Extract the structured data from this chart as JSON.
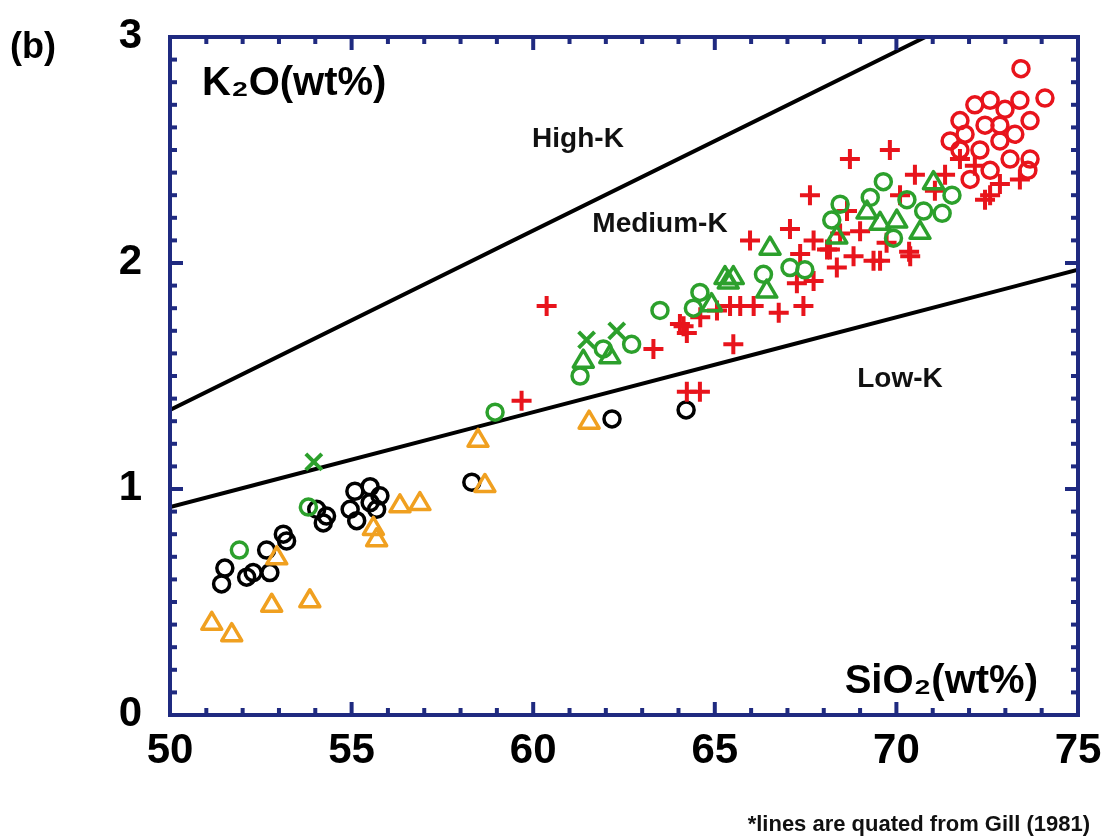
{
  "chart_data": {
    "type": "scatter",
    "title": "(b)",
    "xlabel": "SiO₂(wt%)",
    "ylabel": "K₂O(wt%)",
    "xlim": [
      50,
      75
    ],
    "ylim": [
      0,
      3
    ],
    "xticks": [
      50,
      {
        "value": 51,
        "label": null
      },
      {
        "value": 52,
        "label": null
      },
      {
        "value": 53,
        "label": null
      },
      {
        "value": 54,
        "label": null
      },
      55,
      {
        "value": 56,
        "label": null
      },
      {
        "value": 57,
        "label": null
      },
      {
        "value": 58,
        "label": null
      },
      {
        "value": 59,
        "label": null
      },
      60,
      {
        "value": 61,
        "label": null
      },
      {
        "value": 62,
        "label": null
      },
      {
        "value": 63,
        "label": null
      },
      {
        "value": 64,
        "label": null
      },
      65,
      {
        "value": 66,
        "label": null
      },
      {
        "value": 67,
        "label": null
      },
      {
        "value": 68,
        "label": null
      },
      {
        "value": 69,
        "label": null
      },
      70,
      {
        "value": 71,
        "label": null
      },
      {
        "value": 72,
        "label": null
      },
      {
        "value": 73,
        "label": null
      },
      {
        "value": 74,
        "label": null
      },
      75
    ],
    "yticks": [
      0,
      {
        "value": 0.1,
        "label": null
      },
      {
        "value": 0.2,
        "label": null
      },
      {
        "value": 0.3,
        "label": null
      },
      {
        "value": 0.4,
        "label": null
      },
      {
        "value": 0.5,
        "label": null
      },
      {
        "value": 0.6,
        "label": null
      },
      {
        "value": 0.7,
        "label": null
      },
      {
        "value": 0.8,
        "label": null
      },
      {
        "value": 0.9,
        "label": null
      },
      1,
      {
        "value": 1.1,
        "label": null
      },
      {
        "value": 1.2,
        "label": null
      },
      {
        "value": 1.3,
        "label": null
      },
      {
        "value": 1.4,
        "label": null
      },
      {
        "value": 1.5,
        "label": null
      },
      {
        "value": 1.6,
        "label": null
      },
      {
        "value": 1.7,
        "label": null
      },
      {
        "value": 1.8,
        "label": null
      },
      {
        "value": 1.9,
        "label": null
      },
      2,
      {
        "value": 2.1,
        "label": null
      },
      {
        "value": 2.2,
        "label": null
      },
      {
        "value": 2.3,
        "label": null
      },
      {
        "value": 2.4,
        "label": null
      },
      {
        "value": 2.5,
        "label": null
      },
      {
        "value": 2.6,
        "label": null
      },
      {
        "value": 2.7,
        "label": null
      },
      {
        "value": 2.8,
        "label": null
      },
      {
        "value": 2.9,
        "label": null
      },
      3
    ],
    "series": [
      {
        "type": "line",
        "marker": "none",
        "color": "#000000",
        "x": [
          50,
          70.8
        ],
        "values": [
          1.35,
          3
        ]
      },
      {
        "type": "line",
        "marker": "none",
        "color": "#000000",
        "x": [
          50,
          75
        ],
        "values": [
          0.92,
          1.97
        ]
      },
      {
        "color": "#000000",
        "marker": "circle",
        "x": [
          51.42,
          51.51,
          52.11,
          52.29,
          52.75,
          52.66,
          53.21,
          53.12,
          54.04,
          54.22,
          54.31,
          55.09,
          55.51,
          55.78,
          55.14,
          55.51,
          54.96,
          55.69,
          58.31,
          62.17,
          64.21
        ],
        "values": [
          0.58,
          0.65,
          0.61,
          0.63,
          0.63,
          0.73,
          0.77,
          0.8,
          0.91,
          0.85,
          0.88,
          0.99,
          1.01,
          0.97,
          0.86,
          0.94,
          0.91,
          0.91,
          1.03,
          1.31,
          1.35
        ]
      },
      {
        "color": "#f0a020",
        "marker": "triangle",
        "x": [
          51.15,
          51.7,
          52.8,
          53.85,
          52.94,
          55.6,
          55.69,
          56.33,
          56.88,
          58.48,
          58.67,
          61.54
        ],
        "values": [
          0.41,
          0.36,
          0.49,
          0.51,
          0.7,
          0.83,
          0.78,
          0.93,
          0.94,
          1.22,
          1.02,
          1.3
        ]
      },
      {
        "color": "#e8141c",
        "marker": "cross",
        "x": [
          60.37,
          59.68,
          63.31,
          64.23,
          64.59,
          64.04,
          64.23,
          65.51,
          65.42,
          64.14,
          64.6,
          65.06,
          65.7,
          66.07,
          66.76,
          67.44,
          67.26,
          67.72,
          68.36,
          67.35,
          67.72,
          68.09,
          68.45,
          68.64,
          68.82,
          69.37,
          70.38,
          69,
          69.73,
          67.62,
          68.72,
          70.1,
          70.51,
          69.82,
          71.06,
          72.58,
          73.4,
          72.44,
          71.75,
          65.97,
          67.07,
          68.17,
          69.55,
          70.35,
          71.34,
          72.16,
          72.85
        ],
        "values": [
          1.81,
          1.39,
          1.62,
          1.43,
          1.43,
          1.73,
          1.69,
          1.64,
          1.81,
          1.72,
          1.76,
          1.79,
          1.81,
          1.81,
          1.78,
          1.81,
          1.91,
          1.92,
          1.98,
          2.04,
          2.1,
          2.06,
          2.13,
          2.23,
          2.03,
          2.01,
          2.03,
          2.14,
          2.09,
          2.3,
          2.46,
          2.3,
          2.39,
          2.5,
          2.32,
          2.3,
          2.37,
          2.28,
          2.46,
          2.1,
          2.15,
          2.06,
          2.01,
          2.05,
          2.39,
          2.43,
          2.35
        ]
      },
      {
        "color": "#e8141c",
        "marker": "circle",
        "x": [
          71.75,
          72.16,
          72.58,
          72.99,
          73.4,
          73.43,
          74.09,
          73.68,
          72.85,
          72.3,
          71.75,
          71.48,
          73.13,
          73.68,
          73.62,
          72.58,
          72.03,
          72.85,
          73.26,
          72.44,
          71.89
        ],
        "values": [
          2.63,
          2.7,
          2.72,
          2.68,
          2.72,
          2.86,
          2.73,
          2.63,
          2.54,
          2.5,
          2.5,
          2.54,
          2.46,
          2.46,
          2.41,
          2.41,
          2.37,
          2.61,
          2.57,
          2.61,
          2.57
        ]
      },
      {
        "color": "#2ca02c",
        "marker": "circle",
        "x": [
          51.91,
          53.81,
          58.95,
          61.29,
          61.93,
          62.71,
          63.49,
          64.41,
          64.59,
          66.34,
          67.07,
          67.48,
          68.22,
          68.45,
          69.28,
          69.64,
          69.92,
          70.29,
          70.75,
          71.26,
          71.53
        ],
        "values": [
          0.73,
          0.92,
          1.34,
          1.5,
          1.62,
          1.64,
          1.79,
          1.8,
          1.87,
          1.95,
          1.98,
          1.97,
          2.19,
          2.26,
          2.29,
          2.36,
          2.11,
          2.28,
          2.23,
          2.22,
          2.3
        ]
      },
      {
        "color": "#2ca02c",
        "marker": "x",
        "x": [
          53.96,
          61.47,
          62.3
        ],
        "values": [
          1.12,
          1.66,
          1.7
        ]
      },
      {
        "color": "#2ca02c",
        "marker": "triangle",
        "x": [
          61.38,
          62.11,
          64.91,
          66.52,
          66.43,
          68.36,
          69.19,
          69.55,
          70.65,
          71.02,
          70.01,
          65.28,
          65.51,
          65.37
        ],
        "values": [
          1.57,
          1.59,
          1.82,
          2.07,
          1.88,
          2.12,
          2.23,
          2.18,
          2.14,
          2.36,
          2.19,
          1.94,
          1.94,
          1.92
        ]
      }
    ],
    "annotations": [
      "High-K",
      "Medium-K",
      "Low-K",
      "*lines are quated from Gill (1981)"
    ]
  }
}
